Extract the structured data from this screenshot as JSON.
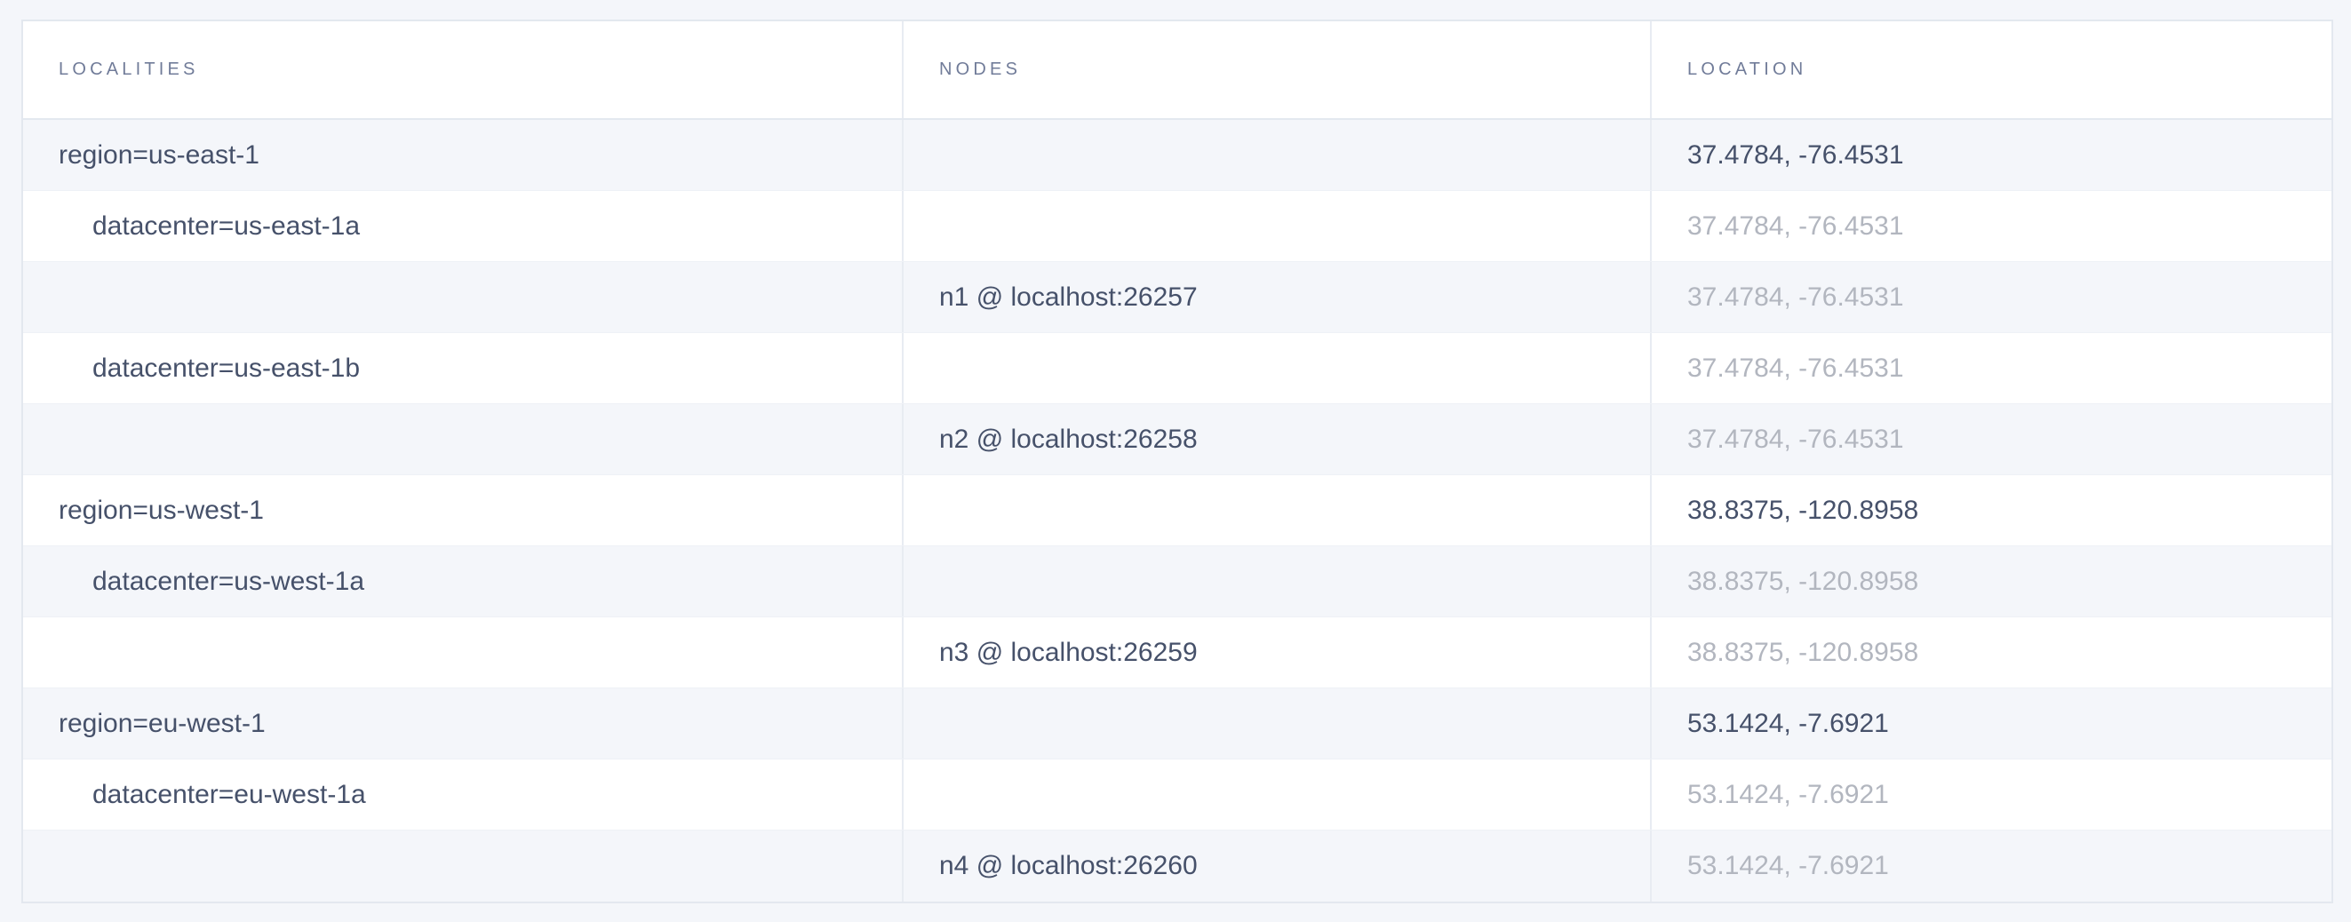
{
  "page": {
    "background_color": "#f4f6fa"
  },
  "colors": {
    "text_primary": "#46516a",
    "text_muted": "#b2b6bf",
    "header_text": "#717c99",
    "row_alt_bg": "#f4f6fa",
    "row_bg": "#ffffff",
    "border": "#e3e8ef"
  },
  "table": {
    "columns": [
      {
        "key": "localities",
        "label": "Localities"
      },
      {
        "key": "nodes",
        "label": "Nodes"
      },
      {
        "key": "location",
        "label": "Location"
      }
    ],
    "rows": [
      {
        "depth": 0,
        "locality": "region=us-east-1",
        "node": "",
        "location": "37.4784, -76.4531",
        "location_muted": false
      },
      {
        "depth": 1,
        "locality": "datacenter=us-east-1a",
        "node": "",
        "location": "37.4784, -76.4531",
        "location_muted": true
      },
      {
        "depth": 0,
        "locality": "",
        "node": "n1 @ localhost:26257",
        "location": "37.4784, -76.4531",
        "location_muted": true
      },
      {
        "depth": 1,
        "locality": "datacenter=us-east-1b",
        "node": "",
        "location": "37.4784, -76.4531",
        "location_muted": true
      },
      {
        "depth": 0,
        "locality": "",
        "node": "n2 @ localhost:26258",
        "location": "37.4784, -76.4531",
        "location_muted": true
      },
      {
        "depth": 0,
        "locality": "region=us-west-1",
        "node": "",
        "location": "38.8375, -120.8958",
        "location_muted": false
      },
      {
        "depth": 1,
        "locality": "datacenter=us-west-1a",
        "node": "",
        "location": "38.8375, -120.8958",
        "location_muted": true
      },
      {
        "depth": 0,
        "locality": "",
        "node": "n3 @ localhost:26259",
        "location": "38.8375, -120.8958",
        "location_muted": true
      },
      {
        "depth": 0,
        "locality": "region=eu-west-1",
        "node": "",
        "location": "53.1424, -7.6921",
        "location_muted": false
      },
      {
        "depth": 1,
        "locality": "datacenter=eu-west-1a",
        "node": "",
        "location": "53.1424, -7.6921",
        "location_muted": true
      },
      {
        "depth": 0,
        "locality": "",
        "node": "n4 @ localhost:26260",
        "location": "53.1424, -7.6921",
        "location_muted": true
      }
    ]
  }
}
